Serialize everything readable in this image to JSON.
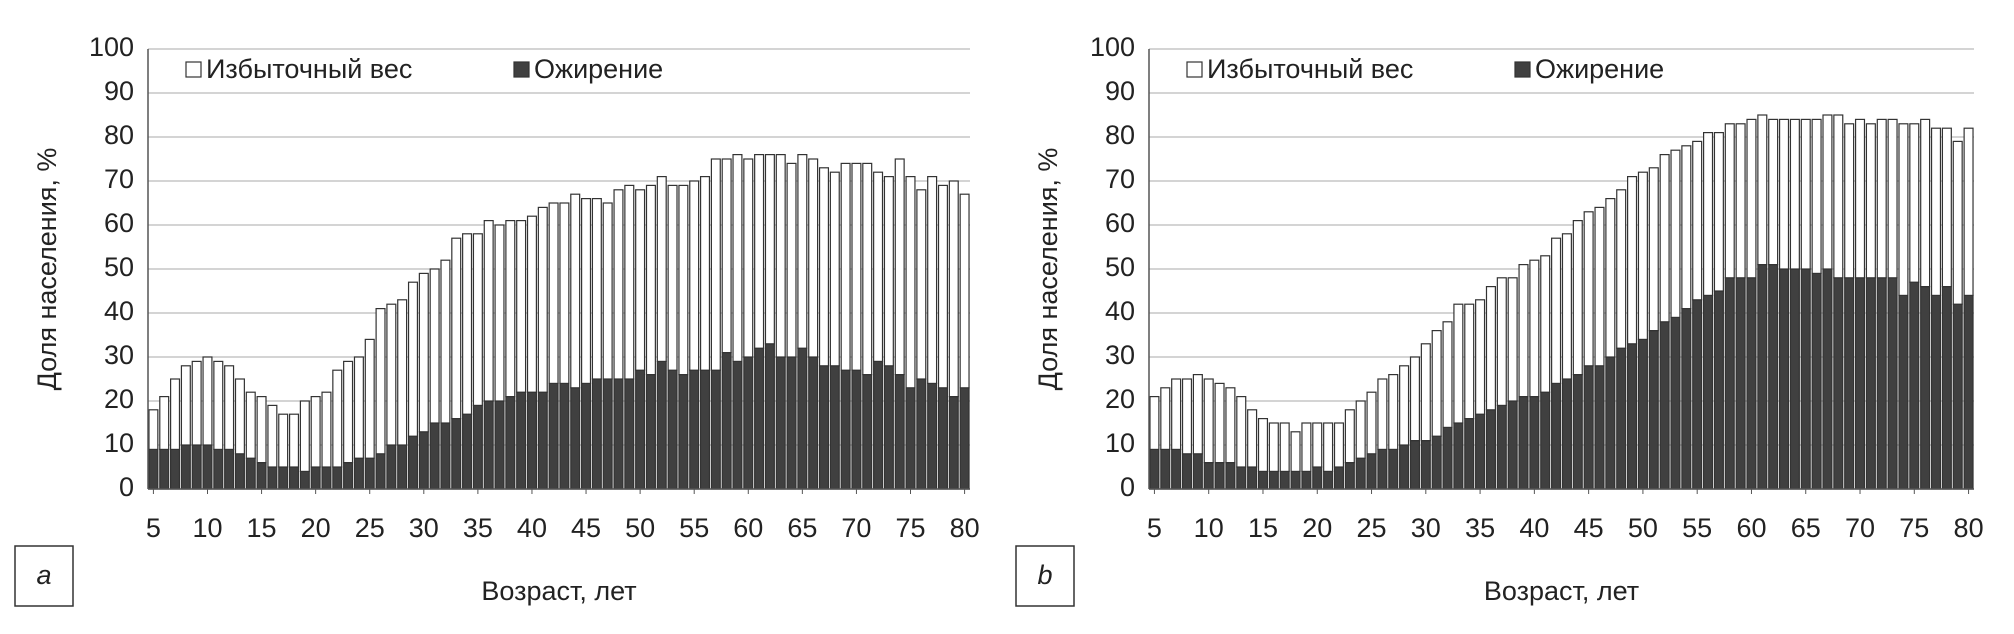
{
  "chart_data": [
    {
      "type": "bar",
      "stacked": true,
      "panel_label": "a",
      "x_label": "Возраст, лет",
      "y_label": "Доля населения, %",
      "x": [
        5,
        6,
        7,
        8,
        9,
        10,
        11,
        12,
        13,
        14,
        15,
        16,
        17,
        18,
        19,
        20,
        21,
        22,
        23,
        24,
        25,
        26,
        27,
        28,
        29,
        30,
        31,
        32,
        33,
        34,
        35,
        36,
        37,
        38,
        39,
        40,
        41,
        42,
        43,
        44,
        45,
        46,
        47,
        48,
        49,
        50,
        51,
        52,
        53,
        54,
        55,
        56,
        57,
        58,
        59,
        60,
        61,
        62,
        63,
        64,
        65,
        66,
        67,
        68,
        69,
        70,
        71,
        72,
        73,
        74,
        75,
        76,
        77,
        78,
        79,
        80
      ],
      "series": [
        {
          "name": "Избыточный вес",
          "color": "#ffffff",
          "values": [
            9,
            12,
            16,
            18,
            19,
            20,
            20,
            19,
            17,
            15,
            15,
            14,
            12,
            12,
            16,
            16,
            17,
            22,
            23,
            23,
            27,
            33,
            32,
            33,
            35,
            36,
            35,
            37,
            41,
            41,
            39,
            41,
            40,
            40,
            39,
            40,
            42,
            41,
            41,
            44,
            42,
            41,
            40,
            43,
            44,
            41,
            43,
            42,
            42,
            43,
            43,
            44,
            48,
            44,
            47,
            45,
            44,
            43,
            46,
            44,
            44,
            45,
            45,
            44,
            47,
            47,
            48,
            43,
            43,
            49,
            48,
            43,
            47,
            46,
            49,
            44
          ]
        },
        {
          "name": "Ожирение",
          "color": "#404040",
          "values": [
            9,
            9,
            9,
            10,
            10,
            10,
            9,
            9,
            8,
            7,
            6,
            5,
            5,
            5,
            4,
            5,
            5,
            5,
            6,
            7,
            7,
            8,
            10,
            10,
            12,
            13,
            15,
            15,
            16,
            17,
            19,
            20,
            20,
            21,
            22,
            22,
            22,
            24,
            24,
            23,
            24,
            25,
            25,
            25,
            25,
            27,
            26,
            29,
            27,
            26,
            27,
            27,
            27,
            31,
            29,
            30,
            32,
            33,
            30,
            30,
            32,
            30,
            28,
            28,
            27,
            27,
            26,
            29,
            28,
            26,
            23,
            25,
            24,
            23,
            21,
            23
          ]
        }
      ],
      "xlim": [
        4.5,
        80.5
      ],
      "xticks": [
        5,
        10,
        15,
        20,
        25,
        30,
        35,
        40,
        45,
        50,
        55,
        60,
        65,
        70,
        75,
        80
      ],
      "ylim": [
        0,
        100
      ],
      "yticks": [
        0,
        10,
        20,
        30,
        40,
        50,
        60,
        70,
        80,
        90,
        100
      ],
      "grid": true,
      "legend": "top-left"
    },
    {
      "type": "bar",
      "stacked": true,
      "panel_label": "b",
      "x_label": "Возраст, лет",
      "y_label": "Доля населения, %",
      "x": [
        5,
        6,
        7,
        8,
        9,
        10,
        11,
        12,
        13,
        14,
        15,
        16,
        17,
        18,
        19,
        20,
        21,
        22,
        23,
        24,
        25,
        26,
        27,
        28,
        29,
        30,
        31,
        32,
        33,
        34,
        35,
        36,
        37,
        38,
        39,
        40,
        41,
        42,
        43,
        44,
        45,
        46,
        47,
        48,
        49,
        50,
        51,
        52,
        53,
        54,
        55,
        56,
        57,
        58,
        59,
        60,
        61,
        62,
        63,
        64,
        65,
        66,
        67,
        68,
        69,
        70,
        71,
        72,
        73,
        74,
        75,
        76,
        77,
        78,
        79,
        80
      ],
      "series": [
        {
          "name": "Избыточный вес",
          "color": "#ffffff",
          "values": [
            12,
            14,
            16,
            17,
            18,
            19,
            18,
            17,
            16,
            13,
            12,
            11,
            11,
            9,
            11,
            10,
            11,
            10,
            12,
            13,
            14,
            16,
            17,
            18,
            19,
            22,
            24,
            24,
            27,
            26,
            26,
            28,
            29,
            28,
            30,
            31,
            31,
            33,
            33,
            35,
            35,
            36,
            36,
            36,
            38,
            38,
            37,
            38,
            38,
            37,
            36,
            37,
            36,
            35,
            35,
            36,
            34,
            33,
            34,
            34,
            34,
            35,
            35,
            37,
            35,
            36,
            35,
            36,
            36,
            39,
            36,
            38,
            38,
            36,
            37,
            38
          ]
        },
        {
          "name": "Ожирение",
          "color": "#404040",
          "values": [
            9,
            9,
            9,
            8,
            8,
            6,
            6,
            6,
            5,
            5,
            4,
            4,
            4,
            4,
            4,
            5,
            4,
            5,
            6,
            7,
            8,
            9,
            9,
            10,
            11,
            11,
            12,
            14,
            15,
            16,
            17,
            18,
            19,
            20,
            21,
            21,
            22,
            24,
            25,
            26,
            28,
            28,
            30,
            32,
            33,
            34,
            36,
            38,
            39,
            41,
            43,
            44,
            45,
            48,
            48,
            48,
            51,
            51,
            50,
            50,
            50,
            49,
            50,
            48,
            48,
            48,
            48,
            48,
            48,
            44,
            47,
            46,
            44,
            46,
            42,
            44
          ]
        }
      ],
      "xlim": [
        4.5,
        80.5
      ],
      "xticks": [
        5,
        10,
        15,
        20,
        25,
        30,
        35,
        40,
        45,
        50,
        55,
        60,
        65,
        70,
        75,
        80
      ],
      "ylim": [
        0,
        100
      ],
      "yticks": [
        0,
        10,
        20,
        30,
        40,
        50,
        60,
        70,
        80,
        90,
        100
      ],
      "grid": true,
      "legend": "top-left"
    }
  ]
}
